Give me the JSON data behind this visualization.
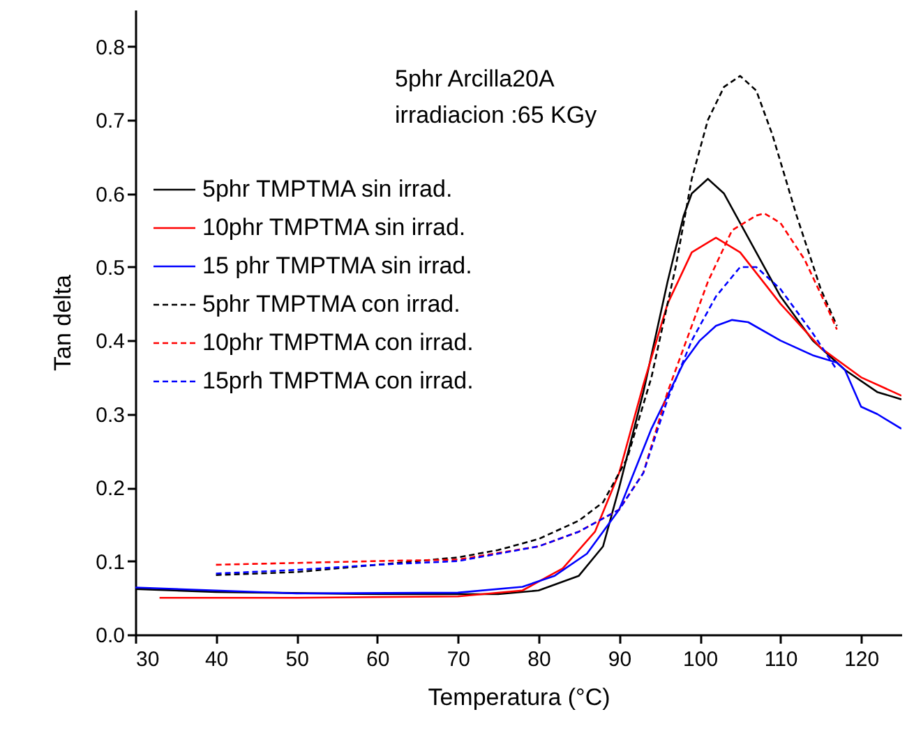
{
  "chart_data": {
    "type": "line",
    "xlabel": "Temperatura (°C)",
    "ylabel": "Tan delta",
    "xlim": [
      30,
      125
    ],
    "ylim": [
      0,
      0.85
    ],
    "xticks": [
      30,
      40,
      50,
      60,
      70,
      80,
      90,
      100,
      110,
      120
    ],
    "yticks": [
      {
        "value": 0,
        "label": "0.0"
      },
      0.1,
      0.2,
      0.3,
      0.4,
      0.5,
      0.6,
      0.7,
      0.8
    ],
    "legend": "top left",
    "annotations": [
      "5phr Arcilla20A",
      "irradiacion :65 KGy"
    ],
    "series": [
      {
        "name": "5phr TMPTMA sin irrad.",
        "color": "#000000",
        "line_style": "solid",
        "x": [
          30,
          40,
          60,
          75,
          80,
          85,
          88,
          90,
          93,
          96,
          98,
          99,
          101,
          103,
          106,
          110,
          114,
          118,
          122,
          125
        ],
        "values": [
          0.062,
          0.058,
          0.055,
          0.055,
          0.06,
          0.08,
          0.12,
          0.2,
          0.33,
          0.48,
          0.57,
          0.6,
          0.62,
          0.6,
          0.54,
          0.46,
          0.4,
          0.36,
          0.33,
          0.32
        ]
      },
      {
        "name": "10phr TMPTMA sin irrad.",
        "color": "#ff0000",
        "line_style": "solid",
        "x": [
          33,
          50,
          70,
          78,
          83,
          87,
          90,
          93,
          96,
          99,
          102,
          105,
          110,
          115,
          120,
          125
        ],
        "values": [
          0.05,
          0.05,
          0.052,
          0.06,
          0.09,
          0.14,
          0.22,
          0.34,
          0.45,
          0.52,
          0.54,
          0.52,
          0.45,
          0.39,
          0.35,
          0.325
        ]
      },
      {
        "name": "15 phr TMPTMA sin irrad.",
        "color": "#0000ff",
        "line_style": "solid",
        "x": [
          30,
          50,
          70,
          78,
          82,
          86,
          90,
          94,
          98,
          100,
          102,
          104,
          106,
          110,
          114,
          117,
          118,
          120,
          122,
          125
        ],
        "values": [
          0.064,
          0.056,
          0.057,
          0.065,
          0.08,
          0.11,
          0.17,
          0.28,
          0.37,
          0.4,
          0.42,
          0.428,
          0.425,
          0.4,
          0.38,
          0.37,
          0.36,
          0.31,
          0.3,
          0.28
        ]
      },
      {
        "name": "5phr TMPTMA con irrad.",
        "color": "#000000",
        "line_style": "dashed",
        "x": [
          40,
          50,
          60,
          70,
          75,
          80,
          85,
          88,
          91,
          94,
          97,
          99,
          101,
          103,
          105,
          107,
          109,
          112,
          115,
          117
        ],
        "values": [
          0.081,
          0.085,
          0.095,
          0.105,
          0.115,
          0.13,
          0.155,
          0.18,
          0.24,
          0.35,
          0.5,
          0.62,
          0.7,
          0.745,
          0.76,
          0.74,
          0.68,
          0.57,
          0.47,
          0.42
        ]
      },
      {
        "name": "10phr TMPTMA con irrad.",
        "color": "#ff0000",
        "line_style": "dashed",
        "x": [
          40,
          60,
          70,
          80,
          85,
          90,
          93,
          96,
          99,
          101,
          104,
          107,
          108,
          110,
          113,
          116,
          117
        ],
        "values": [
          0.095,
          0.1,
          0.102,
          0.12,
          0.14,
          0.17,
          0.22,
          0.33,
          0.42,
          0.48,
          0.55,
          0.57,
          0.573,
          0.56,
          0.51,
          0.44,
          0.415
        ]
      },
      {
        "name": "15prh TMPTMA con irrad.",
        "color": "#0000ff",
        "line_style": "dashed",
        "x": [
          40,
          50,
          60,
          70,
          80,
          85,
          90,
          93,
          96,
          99,
          102,
          105,
          107,
          110,
          114,
          117
        ],
        "values": [
          0.083,
          0.088,
          0.095,
          0.1,
          0.12,
          0.14,
          0.17,
          0.22,
          0.32,
          0.4,
          0.46,
          0.5,
          0.5,
          0.47,
          0.41,
          0.36
        ]
      }
    ]
  }
}
